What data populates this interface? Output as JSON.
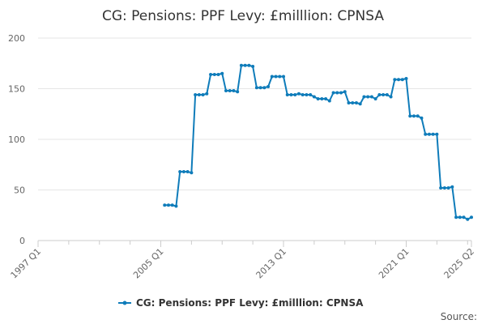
{
  "title": "CG: Pensions: PPF Levy: £milllion: CPNSA",
  "source_label": "Source:",
  "colors": {
    "series": "#0f7cba",
    "grid": "#e6e6e6",
    "axis": "#cccccc",
    "text": "#333333"
  },
  "chart_data": {
    "type": "line",
    "title": "CG: Pensions: PPF Levy: £milllion: CPNSA",
    "xlabel": "",
    "ylabel": "",
    "ylim": [
      0,
      200
    ],
    "yticks": [
      0,
      50,
      100,
      150,
      200
    ],
    "xlim": [
      "1997 Q1",
      "2025 Q2"
    ],
    "xtick_labels": [
      "1997 Q1",
      "2005 Q1",
      "2013 Q1",
      "2021 Q1",
      "2025 Q2"
    ],
    "grid": true,
    "legend_position": "bottom",
    "series": [
      {
        "name": "CG: Pensions: PPF Levy: £milllion: CPNSA",
        "x": [
          "2005 Q2",
          "2005 Q3",
          "2005 Q4",
          "2006 Q1",
          "2006 Q2",
          "2006 Q3",
          "2006 Q4",
          "2007 Q1",
          "2007 Q2",
          "2007 Q3",
          "2007 Q4",
          "2008 Q1",
          "2008 Q2",
          "2008 Q3",
          "2008 Q4",
          "2009 Q1",
          "2009 Q2",
          "2009 Q3",
          "2009 Q4",
          "2010 Q1",
          "2010 Q2",
          "2010 Q3",
          "2010 Q4",
          "2011 Q1",
          "2011 Q2",
          "2011 Q3",
          "2011 Q4",
          "2012 Q1",
          "2012 Q2",
          "2012 Q3",
          "2012 Q4",
          "2013 Q1",
          "2013 Q2",
          "2013 Q3",
          "2013 Q4",
          "2014 Q1",
          "2014 Q2",
          "2014 Q3",
          "2014 Q4",
          "2015 Q1",
          "2015 Q2",
          "2015 Q3",
          "2015 Q4",
          "2016 Q1",
          "2016 Q2",
          "2016 Q3",
          "2016 Q4",
          "2017 Q1",
          "2017 Q2",
          "2017 Q3",
          "2017 Q4",
          "2018 Q1",
          "2018 Q2",
          "2018 Q3",
          "2018 Q4",
          "2019 Q1",
          "2019 Q2",
          "2019 Q3",
          "2019 Q4",
          "2020 Q1",
          "2020 Q2",
          "2020 Q3",
          "2020 Q4",
          "2021 Q1",
          "2021 Q2",
          "2021 Q3",
          "2021 Q4",
          "2022 Q1",
          "2022 Q2",
          "2022 Q3",
          "2022 Q4",
          "2023 Q1",
          "2023 Q2",
          "2023 Q3",
          "2023 Q4",
          "2024 Q1",
          "2024 Q2",
          "2024 Q3",
          "2024 Q4",
          "2025 Q1",
          "2025 Q2"
        ],
        "values": [
          35,
          35,
          35,
          34,
          68,
          68,
          68,
          67,
          144,
          144,
          144,
          145,
          164,
          164,
          164,
          165,
          148,
          148,
          148,
          147,
          173,
          173,
          173,
          172,
          151,
          151,
          151,
          152,
          162,
          162,
          162,
          162,
          144,
          144,
          144,
          145,
          144,
          144,
          144,
          142,
          140,
          140,
          140,
          138,
          146,
          146,
          146,
          147,
          136,
          136,
          136,
          135,
          142,
          142,
          142,
          140,
          144,
          144,
          144,
          142,
          159,
          159,
          159,
          160,
          123,
          123,
          123,
          121,
          105,
          105,
          105,
          105,
          52,
          52,
          52,
          53,
          23,
          23,
          23,
          21,
          23
        ]
      }
    ]
  }
}
